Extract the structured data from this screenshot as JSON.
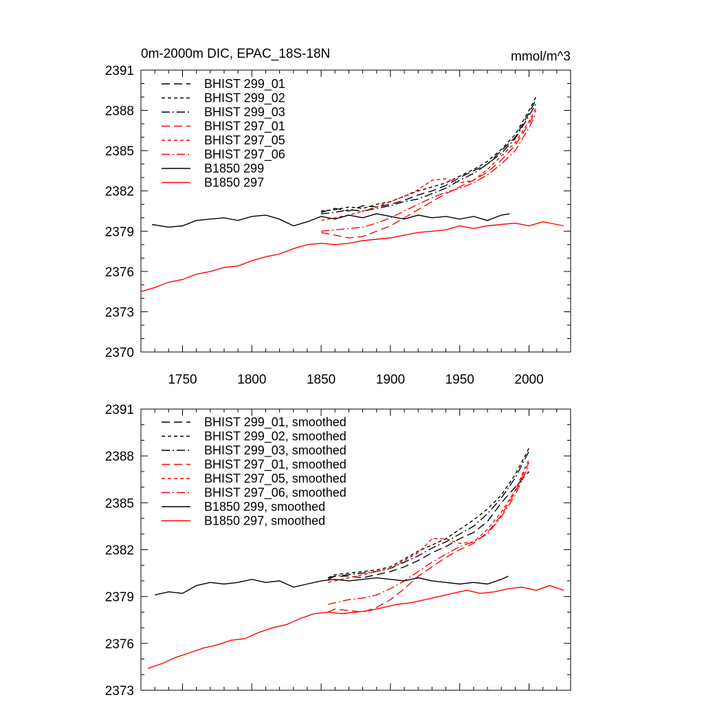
{
  "chart_data": [
    {
      "type": "line",
      "title": "0m-2000m DIC, EPAC_18S-18N",
      "units": "mmol/m^3",
      "xlabel": "",
      "ylabel": "",
      "xlim": [
        1720,
        2030
      ],
      "ylim": [
        2370,
        2391
      ],
      "x_ticks": [
        1750,
        1800,
        1850,
        1900,
        1950,
        2000
      ],
      "y_ticks": [
        2370,
        2373,
        2376,
        2379,
        2382,
        2385,
        2388,
        2391
      ],
      "legend_position": "top-left",
      "series": [
        {
          "name": "BHIST 299_01",
          "color": "#000000",
          "dash": "long-dash",
          "x": [
            1850,
            1860,
            1870,
            1880,
            1890,
            1900,
            1910,
            1920,
            1930,
            1940,
            1950,
            1960,
            1970,
            1980,
            1990,
            2000,
            2005
          ],
          "y": [
            2380.4,
            2380.7,
            2380.5,
            2380.9,
            2380.8,
            2381.0,
            2381.3,
            2381.7,
            2382.0,
            2382.4,
            2383.0,
            2383.5,
            2384.0,
            2385.0,
            2386.0,
            2387.8,
            2388.8
          ]
        },
        {
          "name": "BHIST 299_02",
          "color": "#000000",
          "dash": "short-dash",
          "x": [
            1850,
            1860,
            1870,
            1880,
            1890,
            1900,
            1910,
            1920,
            1930,
            1940,
            1950,
            1960,
            1970,
            1980,
            1990,
            2000,
            2005
          ],
          "y": [
            2380.5,
            2380.6,
            2380.8,
            2380.7,
            2381.0,
            2381.2,
            2381.6,
            2382.0,
            2382.3,
            2382.6,
            2383.1,
            2383.6,
            2384.2,
            2385.1,
            2386.2,
            2388.0,
            2389.0
          ]
        },
        {
          "name": "BHIST 299_03",
          "color": "#000000",
          "dash": "dash-dot",
          "x": [
            1850,
            1860,
            1870,
            1880,
            1890,
            1900,
            1910,
            1920,
            1930,
            1940,
            1950,
            1960,
            1970,
            1980,
            1990,
            2000,
            2005
          ],
          "y": [
            2380.3,
            2380.4,
            2380.6,
            2380.5,
            2380.7,
            2380.9,
            2381.2,
            2381.4,
            2381.8,
            2382.2,
            2382.8,
            2383.3,
            2384.0,
            2384.8,
            2385.9,
            2387.6,
            2388.5
          ]
        },
        {
          "name": "BHIST 297_01",
          "color": "#ff0000",
          "dash": "long-dash",
          "x": [
            1850,
            1860,
            1870,
            1880,
            1890,
            1900,
            1910,
            1920,
            1930,
            1940,
            1950,
            1960,
            1970,
            1980,
            1990,
            2000,
            2005
          ],
          "y": [
            2378.9,
            2378.7,
            2378.5,
            2378.6,
            2379.0,
            2379.4,
            2380.0,
            2380.6,
            2381.2,
            2381.8,
            2382.3,
            2382.8,
            2383.4,
            2384.3,
            2385.4,
            2387.0,
            2388.0
          ]
        },
        {
          "name": "BHIST 297_05",
          "color": "#ff0000",
          "dash": "short-dash",
          "x": [
            1850,
            1860,
            1870,
            1880,
            1890,
            1900,
            1910,
            1920,
            1930,
            1940,
            1950,
            1960,
            1970,
            1980,
            1990,
            2000,
            2005
          ],
          "y": [
            2379.8,
            2380.0,
            2380.2,
            2380.5,
            2380.8,
            2381.2,
            2381.6,
            2382.1,
            2382.8,
            2382.9,
            2382.6,
            2382.8,
            2383.6,
            2384.6,
            2385.6,
            2387.2,
            2388.2
          ]
        },
        {
          "name": "BHIST 297_06",
          "color": "#ff0000",
          "dash": "dash-dot",
          "x": [
            1850,
            1860,
            1870,
            1880,
            1890,
            1900,
            1910,
            1920,
            1930,
            1940,
            1950,
            1960,
            1970,
            1980,
            1990,
            2000,
            2005
          ],
          "y": [
            2379.0,
            2379.1,
            2379.2,
            2379.3,
            2379.6,
            2380.0,
            2380.5,
            2381.0,
            2381.5,
            2381.9,
            2382.2,
            2382.6,
            2383.2,
            2384.0,
            2385.0,
            2386.7,
            2387.8
          ]
        },
        {
          "name": "B1850 299",
          "color": "#000000",
          "dash": "solid",
          "x": [
            1728,
            1740,
            1750,
            1760,
            1770,
            1780,
            1790,
            1800,
            1810,
            1820,
            1830,
            1840,
            1850,
            1860,
            1870,
            1880,
            1890,
            1900,
            1910,
            1920,
            1930,
            1940,
            1950,
            1960,
            1970,
            1980,
            1986
          ],
          "y": [
            2379.5,
            2379.3,
            2379.4,
            2379.8,
            2379.9,
            2380.0,
            2379.8,
            2380.1,
            2380.2,
            2379.9,
            2379.4,
            2379.7,
            2380.1,
            2379.9,
            2380.2,
            2380.0,
            2380.3,
            2380.1,
            2379.9,
            2380.2,
            2380.0,
            2380.1,
            2379.9,
            2380.1,
            2379.8,
            2380.2,
            2380.3
          ]
        },
        {
          "name": "B1850 297",
          "color": "#ff0000",
          "dash": "solid",
          "x": [
            1720,
            1730,
            1740,
            1750,
            1760,
            1770,
            1780,
            1790,
            1800,
            1810,
            1820,
            1830,
            1840,
            1850,
            1860,
            1870,
            1880,
            1890,
            1900,
            1910,
            1920,
            1930,
            1940,
            1950,
            1960,
            1970,
            1980,
            1990,
            2000,
            2010,
            2020,
            2025
          ],
          "y": [
            2374.5,
            2374.8,
            2375.2,
            2375.4,
            2375.8,
            2376.0,
            2376.3,
            2376.4,
            2376.8,
            2377.1,
            2377.3,
            2377.7,
            2378.0,
            2378.1,
            2378.0,
            2378.1,
            2378.3,
            2378.4,
            2378.5,
            2378.7,
            2378.9,
            2379.0,
            2379.1,
            2379.4,
            2379.2,
            2379.4,
            2379.5,
            2379.6,
            2379.4,
            2379.7,
            2379.5,
            2379.4
          ]
        }
      ]
    },
    {
      "type": "line",
      "title": "",
      "xlabel": "",
      "ylabel": "",
      "xlim": [
        1720,
        2030
      ],
      "ylim": [
        2373,
        2391
      ],
      "x_ticks": [
        1750,
        1800,
        1850,
        1900,
        1950,
        2000
      ],
      "y_ticks": [
        2373,
        2376,
        2379,
        2382,
        2385,
        2388,
        2391
      ],
      "legend_position": "top-left",
      "series": [
        {
          "name": "BHIST 299_01, smoothed",
          "color": "#000000",
          "dash": "long-dash",
          "x": [
            1855,
            1860,
            1870,
            1880,
            1890,
            1900,
            1910,
            1920,
            1930,
            1940,
            1950,
            1960,
            1970,
            1980,
            1990,
            2000
          ],
          "y": [
            2380.2,
            2380.3,
            2380.3,
            2380.2,
            2380.4,
            2380.6,
            2380.9,
            2381.3,
            2381.8,
            2382.2,
            2382.7,
            2383.1,
            2383.8,
            2385.0,
            2386.0,
            2387.0
          ]
        },
        {
          "name": "BHIST 299_02, smoothed",
          "color": "#000000",
          "dash": "short-dash",
          "x": [
            1855,
            1860,
            1870,
            1880,
            1890,
            1900,
            1910,
            1920,
            1930,
            1940,
            1950,
            1960,
            1970,
            1980,
            1990,
            2000
          ],
          "y": [
            2380.2,
            2380.4,
            2380.5,
            2380.6,
            2380.7,
            2380.9,
            2381.4,
            2381.9,
            2382.3,
            2382.7,
            2383.3,
            2383.9,
            2384.6,
            2385.5,
            2386.8,
            2388.5
          ]
        },
        {
          "name": "BHIST 299_03, smoothed",
          "color": "#000000",
          "dash": "dash-dot",
          "x": [
            1855,
            1860,
            1870,
            1880,
            1890,
            1900,
            1910,
            1920,
            1930,
            1940,
            1950,
            1960,
            1970,
            1980,
            1990,
            2000
          ],
          "y": [
            2380.1,
            2380.3,
            2380.4,
            2380.5,
            2380.6,
            2380.8,
            2381.2,
            2381.6,
            2382.1,
            2382.5,
            2383.0,
            2383.5,
            2384.3,
            2385.3,
            2386.6,
            2388.3
          ]
        },
        {
          "name": "BHIST 297_01, smoothed",
          "color": "#ff0000",
          "dash": "long-dash",
          "x": [
            1855,
            1860,
            1870,
            1880,
            1890,
            1900,
            1910,
            1920,
            1930,
            1940,
            1950,
            1960,
            1970,
            1980,
            1990,
            2000
          ],
          "y": [
            2378.0,
            2378.2,
            2378.1,
            2378.0,
            2378.3,
            2378.8,
            2379.5,
            2380.3,
            2380.9,
            2381.5,
            2382.0,
            2382.4,
            2383.1,
            2384.2,
            2385.7,
            2387.6
          ]
        },
        {
          "name": "BHIST 297_05, smoothed",
          "color": "#ff0000",
          "dash": "short-dash",
          "x": [
            1855,
            1860,
            1870,
            1880,
            1890,
            1900,
            1910,
            1920,
            1930,
            1940,
            1950,
            1960,
            1970,
            1980,
            1990,
            2000
          ],
          "y": [
            2379.9,
            2380.0,
            2380.2,
            2380.4,
            2380.6,
            2380.8,
            2381.3,
            2381.8,
            2382.7,
            2382.7,
            2382.4,
            2382.5,
            2383.3,
            2384.4,
            2385.8,
            2387.8
          ]
        },
        {
          "name": "BHIST 297_06, smoothed",
          "color": "#ff0000",
          "dash": "dash-dot",
          "x": [
            1855,
            1860,
            1870,
            1880,
            1890,
            1900,
            1910,
            1920,
            1930,
            1940,
            1950,
            1960,
            1970,
            1980,
            1990,
            2000
          ],
          "y": [
            2378.5,
            2378.6,
            2378.8,
            2378.9,
            2379.1,
            2379.5,
            2380.0,
            2380.6,
            2381.2,
            2381.7,
            2382.2,
            2382.5,
            2383.0,
            2384.1,
            2385.5,
            2387.4
          ]
        },
        {
          "name": "B1850 299, smoothed",
          "color": "#000000",
          "dash": "solid",
          "x": [
            1730,
            1740,
            1750,
            1760,
            1770,
            1780,
            1790,
            1800,
            1810,
            1820,
            1830,
            1840,
            1850,
            1860,
            1870,
            1880,
            1890,
            1900,
            1910,
            1920,
            1930,
            1940,
            1950,
            1960,
            1970,
            1980,
            1985
          ],
          "y": [
            2379.1,
            2379.3,
            2379.2,
            2379.7,
            2379.9,
            2379.8,
            2379.9,
            2380.1,
            2379.9,
            2380.0,
            2379.6,
            2379.8,
            2380.0,
            2380.1,
            2380.0,
            2380.1,
            2380.2,
            2380.1,
            2380.0,
            2380.2,
            2380.0,
            2379.9,
            2379.8,
            2379.9,
            2379.8,
            2380.1,
            2380.3
          ]
        },
        {
          "name": "B1850 297, smoothed",
          "color": "#ff0000",
          "dash": "solid",
          "x": [
            1725,
            1735,
            1745,
            1755,
            1765,
            1775,
            1785,
            1795,
            1805,
            1815,
            1825,
            1835,
            1845,
            1855,
            1865,
            1875,
            1885,
            1895,
            1905,
            1915,
            1925,
            1935,
            1945,
            1955,
            1965,
            1975,
            1985,
            1995,
            2005,
            2015,
            2025
          ],
          "y": [
            2374.4,
            2374.7,
            2375.1,
            2375.4,
            2375.7,
            2375.9,
            2376.2,
            2376.3,
            2376.7,
            2377.0,
            2377.2,
            2377.6,
            2377.9,
            2378.0,
            2377.9,
            2378.0,
            2378.1,
            2378.3,
            2378.5,
            2378.6,
            2378.8,
            2379.0,
            2379.2,
            2379.4,
            2379.2,
            2379.3,
            2379.5,
            2379.6,
            2379.4,
            2379.7,
            2379.4
          ]
        }
      ]
    }
  ]
}
